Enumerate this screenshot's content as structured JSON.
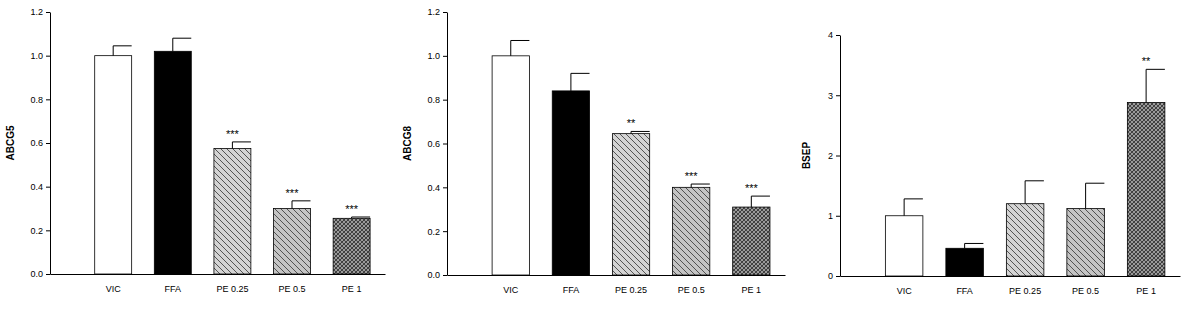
{
  "chart_data": [
    {
      "type": "bar",
      "y_label": "ABCG5",
      "categories": [
        "VIC",
        "FFA",
        "PE 0.25",
        "PE 0.5",
        "PE 1"
      ],
      "values": [
        1.0,
        1.02,
        0.575,
        0.3,
        0.255
      ],
      "errors": [
        0.045,
        0.06,
        0.03,
        0.035,
        0.006
      ],
      "annotations": [
        null,
        null,
        "***",
        "***",
        "***"
      ],
      "colors": [
        "#ffffff",
        "#000000",
        "#d4d4d4",
        "#c4c4c4",
        "#9a9a9a"
      ],
      "ylim": [
        0,
        1.2
      ],
      "yticks": [
        {
          "value": 0,
          "label": "0.0"
        },
        {
          "value": 0.2,
          "label": "0.2"
        },
        {
          "value": 0.4,
          "label": "0.4"
        },
        {
          "value": 0.6,
          "label": "0.6"
        },
        {
          "value": 0.8,
          "label": "0.8"
        },
        {
          "value": 1.0,
          "label": "1.0"
        },
        {
          "value": 1.2,
          "label": "1.2"
        }
      ]
    },
    {
      "type": "bar",
      "y_label": "ABCG8",
      "categories": [
        "VIC",
        "FFA",
        "PE 0.25",
        "PE 0.5",
        "PE 1"
      ],
      "values": [
        1.0,
        0.84,
        0.645,
        0.4,
        0.31
      ],
      "errors": [
        0.07,
        0.08,
        0.01,
        0.015,
        0.05
      ],
      "annotations": [
        null,
        null,
        "**",
        "***",
        "***"
      ],
      "colors": [
        "#ffffff",
        "#000000",
        "#d4d4d4",
        "#c4c4c4",
        "#9a9a9a"
      ],
      "ylim": [
        0,
        1.2
      ],
      "yticks": [
        {
          "value": 0,
          "label": "0.0"
        },
        {
          "value": 0.2,
          "label": "0.2"
        },
        {
          "value": 0.4,
          "label": "0.4"
        },
        {
          "value": 0.6,
          "label": "0.6"
        },
        {
          "value": 0.8,
          "label": "0.8"
        },
        {
          "value": 1.0,
          "label": "1.0"
        },
        {
          "value": 1.2,
          "label": "1.2"
        }
      ]
    },
    {
      "type": "bar",
      "y_label": "BSEP",
      "categories": [
        "VIC",
        "FFA",
        "PE 0.25",
        "PE 0.5",
        "PE 1"
      ],
      "values": [
        1.0,
        0.46,
        1.2,
        1.12,
        2.88
      ],
      "errors": [
        0.28,
        0.08,
        0.38,
        0.42,
        0.55
      ],
      "annotations": [
        null,
        null,
        null,
        null,
        "**"
      ],
      "colors": [
        "#ffffff",
        "#000000",
        "#d4d4d4",
        "#c4c4c4",
        "#9a9a9a"
      ],
      "ylim": [
        0,
        4
      ],
      "yticks": [
        0,
        1,
        2,
        3,
        4
      ]
    }
  ]
}
